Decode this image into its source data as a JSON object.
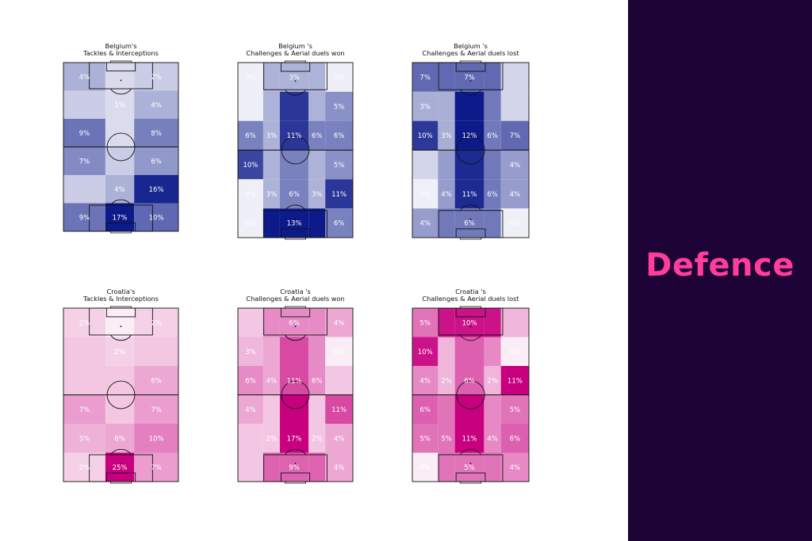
{
  "side_panel": {
    "title": "Defence",
    "background": "#1d0336",
    "title_color": "#ff3d9b"
  },
  "colors": {
    "belgium_base": "#0d1b8a",
    "croatia_base": "#c8007f",
    "pitch_lines": "#111111",
    "label_text": "#ffffff"
  },
  "chart_data": [
    {
      "type": "heatmap",
      "team": "Belgium",
      "title_line1": "Belgium's",
      "title_line2": "Tackles & Interceptions",
      "rows": 6,
      "cols": 3,
      "values": [
        [
          4,
          1,
          2
        ],
        [
          2,
          1,
          4
        ],
        [
          9,
          1,
          8
        ],
        [
          7,
          2,
          6
        ],
        [
          2,
          4,
          16
        ],
        [
          9,
          17,
          10
        ]
      ],
      "labels": [
        [
          "4%",
          "",
          "2%"
        ],
        [
          "",
          "1%",
          "4%"
        ],
        [
          "9%",
          "",
          "8%"
        ],
        [
          "7%",
          "",
          "6%"
        ],
        [
          "",
          "4%",
          "16%"
        ],
        [
          "9%",
          "17%",
          "10%"
        ]
      ]
    },
    {
      "type": "heatmap",
      "team": "Belgium",
      "title_line1": "Belgium 's",
      "title_line2": "Challenges & Aerial duels won",
      "rows": 6,
      "cols": 5,
      "values": [
        [
          0,
          3,
          3,
          3,
          0
        ],
        [
          0,
          3,
          11,
          3,
          5
        ],
        [
          6,
          3,
          11,
          6,
          6
        ],
        [
          10,
          3,
          6,
          3,
          5
        ],
        [
          0,
          3,
          6,
          3,
          11
        ],
        [
          0,
          13,
          13,
          13,
          6
        ]
      ],
      "labels": [
        [
          "0%",
          "",
          "3%",
          "",
          "0%"
        ],
        [
          "",
          "",
          "",
          "",
          "5%"
        ],
        [
          "6%",
          "3%",
          "11%",
          "6%",
          "6%"
        ],
        [
          "10%",
          "",
          "",
          "",
          "5%"
        ],
        [
          "0%",
          "3%",
          "6%",
          "3%",
          "11%"
        ],
        [
          "0%",
          "",
          "13%",
          "",
          "6%"
        ]
      ]
    },
    {
      "type": "heatmap",
      "team": "Belgium",
      "title_line1": "Belgium 's",
      "title_line2": "Challenges & Aerial duels lost",
      "rows": 6,
      "cols": 5,
      "values": [
        [
          7,
          7,
          7,
          7,
          1
        ],
        [
          3,
          3,
          12,
          6,
          1
        ],
        [
          10,
          3,
          12,
          6,
          7
        ],
        [
          1,
          4,
          11,
          6,
          4
        ],
        [
          0,
          4,
          11,
          6,
          4
        ],
        [
          4,
          6,
          6,
          6,
          0
        ]
      ],
      "labels": [
        [
          "7%",
          "",
          "7%",
          "",
          ""
        ],
        [
          "3%",
          "",
          "",
          "",
          ""
        ],
        [
          "10%",
          "3%",
          "12%",
          "6%",
          "7%"
        ],
        [
          "",
          "",
          "",
          "",
          "4%"
        ],
        [
          "0%",
          "4%",
          "11%",
          "6%",
          "4%"
        ],
        [
          "4%",
          "",
          "6%",
          "",
          "0%"
        ]
      ]
    },
    {
      "type": "heatmap",
      "team": "Croatia",
      "title_line1": "Croatia's",
      "title_line2": "Tackles & Interceptions",
      "rows": 6,
      "cols": 3,
      "values": [
        [
          2,
          0,
          2
        ],
        [
          3,
          2,
          3
        ],
        [
          3,
          3,
          6
        ],
        [
          7,
          3,
          7
        ],
        [
          5,
          6,
          10
        ],
        [
          2,
          25,
          7
        ]
      ],
      "labels": [
        [
          "2%",
          "",
          "2%"
        ],
        [
          "",
          "2%",
          ""
        ],
        [
          "",
          "",
          "6%"
        ],
        [
          "7%",
          "",
          "7%"
        ],
        [
          "5%",
          "6%",
          "10%"
        ],
        [
          "2%",
          "25%",
          "7%"
        ]
      ]
    },
    {
      "type": "heatmap",
      "team": "Croatia",
      "title_line1": "Croatia 's",
      "title_line2": "Challenges & Aerial duels won",
      "rows": 6,
      "cols": 5,
      "values": [
        [
          2,
          6,
          6,
          6,
          4
        ],
        [
          3,
          4,
          11,
          6,
          0
        ],
        [
          6,
          4,
          11,
          6,
          2
        ],
        [
          4,
          2,
          17,
          2,
          11
        ],
        [
          2,
          2,
          17,
          2,
          4
        ],
        [
          2,
          9,
          9,
          9,
          4
        ]
      ],
      "labels": [
        [
          "",
          "",
          "6%",
          "",
          "4%"
        ],
        [
          "3%",
          "",
          "",
          "",
          "0%"
        ],
        [
          "6%",
          "4%",
          "11%",
          "6%",
          ""
        ],
        [
          "4%",
          "",
          "",
          "",
          "11%"
        ],
        [
          "",
          "2%",
          "17%",
          "2%",
          "4%"
        ],
        [
          "",
          "",
          "9%",
          "",
          "4%"
        ]
      ]
    },
    {
      "type": "heatmap",
      "team": "Croatia",
      "title_line1": "Croatia 's",
      "title_line2": "Challenges & Aerial duels lost",
      "rows": 6,
      "cols": 5,
      "values": [
        [
          5,
          10,
          10,
          10,
          2
        ],
        [
          10,
          2,
          6,
          4,
          0
        ],
        [
          4,
          2,
          6,
          2,
          11
        ],
        [
          6,
          5,
          11,
          4,
          5
        ],
        [
          5,
          5,
          11,
          4,
          6
        ],
        [
          0,
          5,
          5,
          5,
          4
        ]
      ],
      "labels": [
        [
          "5%",
          "",
          "10%",
          "",
          ""
        ],
        [
          "10%",
          "",
          "",
          "",
          "0%"
        ],
        [
          "4%",
          "2%",
          "6%",
          "2%",
          "11%"
        ],
        [
          "6%",
          "",
          "",
          "",
          "5%"
        ],
        [
          "5%",
          "5%",
          "11%",
          "4%",
          "6%"
        ],
        [
          "0%",
          "",
          "5%",
          "",
          "4%"
        ]
      ]
    }
  ]
}
